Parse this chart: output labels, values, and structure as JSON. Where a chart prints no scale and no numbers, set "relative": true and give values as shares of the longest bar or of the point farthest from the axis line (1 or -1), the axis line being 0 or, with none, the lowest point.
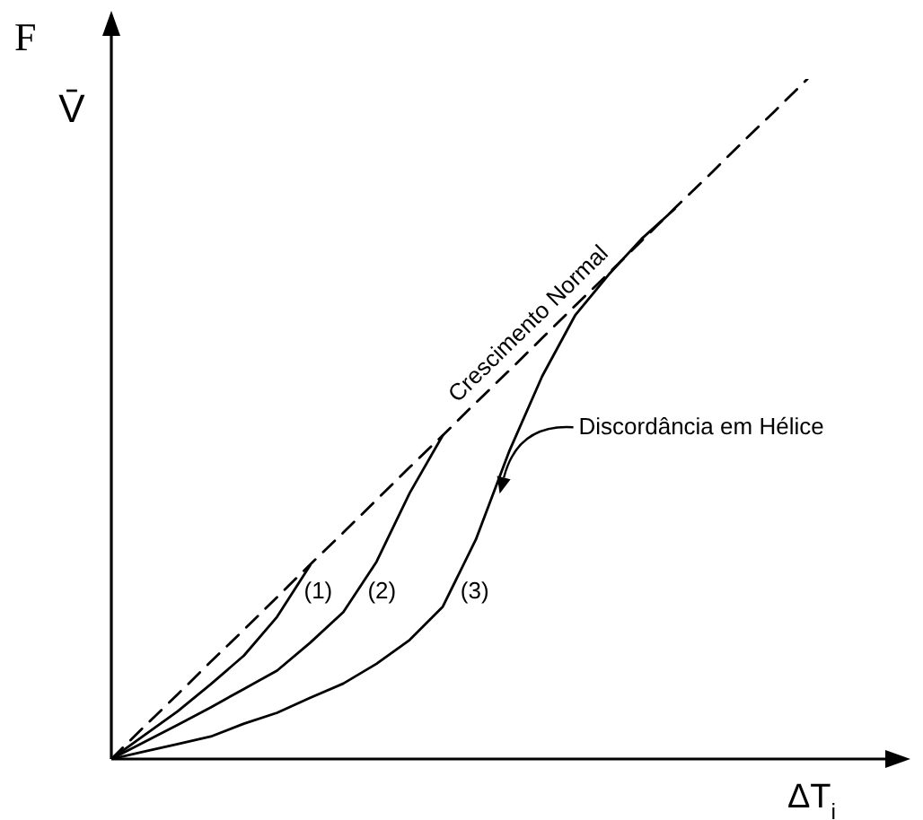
{
  "chart_data": {
    "type": "line",
    "relative": true,
    "xlabel": "ΔT$_{i}$",
    "ylabel": "V̄",
    "tick_labels": false,
    "marker": "none",
    "legend": false,
    "categories": [
      null,
      null,
      null,
      null,
      null,
      null,
      null,
      null,
      null,
      null,
      null,
      null,
      null,
      null,
      null,
      null,
      null,
      null,
      null,
      null,
      null,
      null,
      null,
      null,
      null
    ],
    "annotations": [
      "F",
      "Discordância em Hélice"
    ],
    "series": [
      {
        "name": "Crescimento Normal",
        "color": "#000000",
        "line_style": "dashed",
        "values": [
          0,
          0.048,
          0.095,
          0.143,
          0.19,
          0.238,
          0.286,
          0.333,
          0.381,
          0.429,
          0.476,
          0.524,
          0.571,
          0.619,
          0.667,
          0.714,
          0.762,
          0.81,
          0.857,
          0.905,
          0.952,
          1,
          null,
          null,
          null
        ]
      },
      {
        "name": "(1)",
        "color": "#000000",
        "line_style": "solid",
        "values": [
          0,
          0.035,
          0.07,
          0.11,
          0.152,
          0.209,
          0.285,
          null,
          null,
          null,
          null,
          null,
          null,
          null,
          null,
          null,
          null,
          null,
          null,
          null,
          null,
          null,
          null,
          null,
          null
        ]
      },
      {
        "name": "(2)",
        "color": "#000000",
        "line_style": "solid",
        "values": [
          0,
          0.025,
          0.05,
          0.076,
          0.103,
          0.13,
          0.171,
          0.216,
          0.29,
          0.391,
          0.476,
          null,
          null,
          null,
          null,
          null,
          null,
          null,
          null,
          null,
          null,
          null,
          null,
          null,
          null
        ]
      },
      {
        "name": "(3)",
        "color": "#000000",
        "line_style": "solid",
        "values": [
          0,
          0.011,
          0.022,
          0.033,
          0.052,
          0.068,
          0.09,
          0.111,
          0.14,
          0.175,
          0.224,
          0.323,
          0.452,
          0.563,
          0.653,
          0.712,
          0.765,
          0.809,
          null,
          null,
          null,
          null,
          null,
          null,
          null
        ]
      }
    ]
  }
}
